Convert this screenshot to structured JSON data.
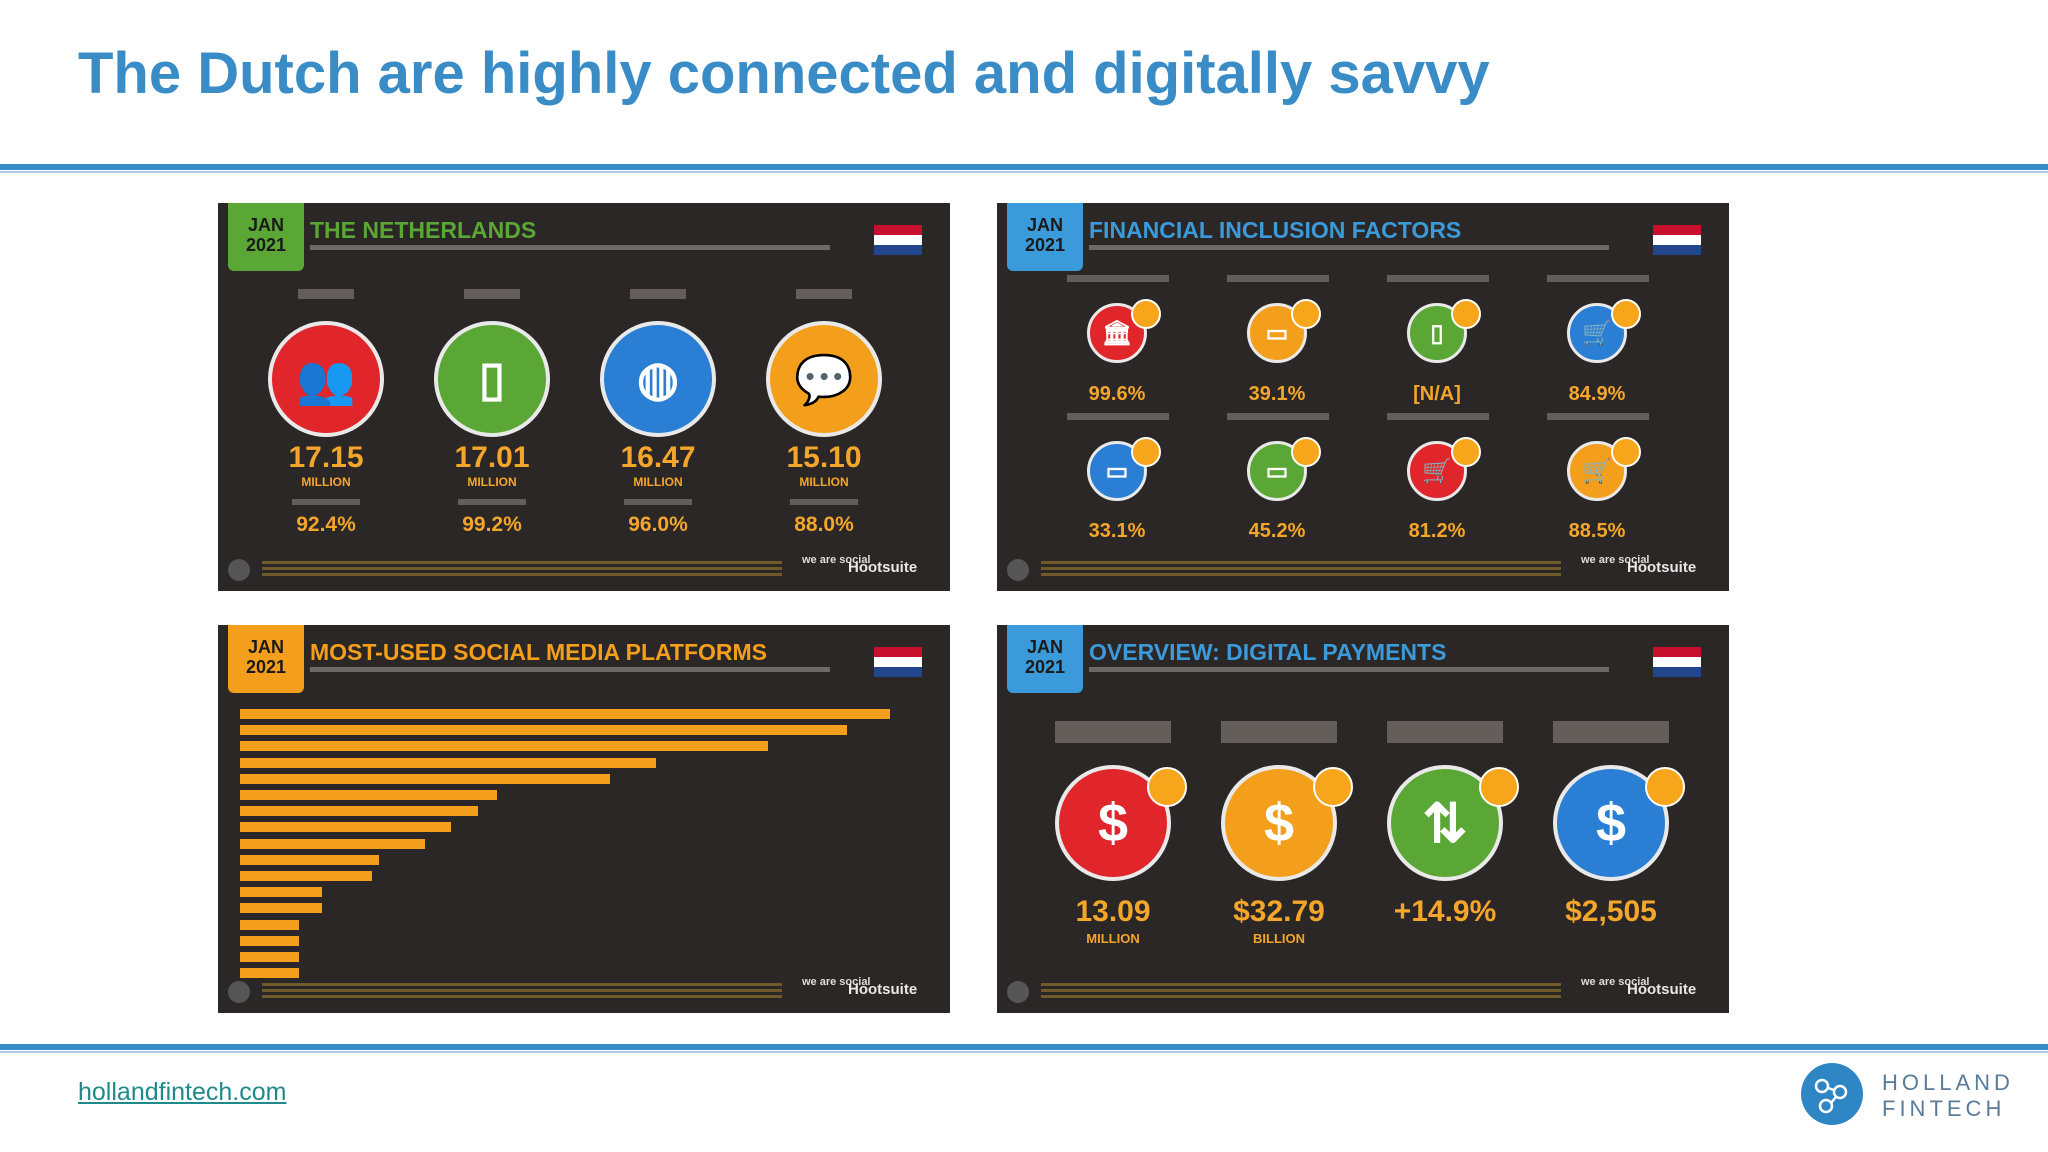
{
  "title": "The Dutch are highly connected and digitally savvy",
  "footer": {
    "link": "hollandfintech.com"
  },
  "logo": {
    "line1": "HOLLAND",
    "line2": "FINTECH"
  },
  "jan_badge": {
    "line1": "JAN",
    "line2": "2021"
  },
  "brand": {
    "was": "we are social",
    "hootsuite": "Hootsuite"
  },
  "colors": {
    "accent_blue": "#3a8cc6",
    "panel_bg": "#2b2726",
    "stat_orange": "#f4a62a",
    "green_badge": "#5aa735",
    "blue_badge": "#3b9ad9"
  },
  "panels": {
    "netherlands": {
      "title": "THE NETHERLANDS",
      "stats": [
        {
          "value": "17.15",
          "unit": "MILLION",
          "pct": "92.4%",
          "color": "#e0252b",
          "icon": "people-icon"
        },
        {
          "value": "17.01",
          "unit": "MILLION",
          "pct": "99.2%",
          "color": "#5aa735",
          "icon": "mobile-phone-icon"
        },
        {
          "value": "16.47",
          "unit": "MILLION",
          "pct": "96.0%",
          "color": "#2a7fd4",
          "icon": "globe-icon"
        },
        {
          "value": "15.10",
          "unit": "MILLION",
          "pct": "88.0%",
          "color": "#f49f1c",
          "icon": "chat-bubbles-icon"
        }
      ]
    },
    "financial": {
      "title": "FINANCIAL INCLUSION FACTORS",
      "row1": [
        {
          "value": "99.6%",
          "color": "#e0252b",
          "icon": "bank-icon"
        },
        {
          "value": "39.1%",
          "color": "#f49f1c",
          "icon": "credit-card-icon"
        },
        {
          "value": "[N/A]",
          "color": "#5aa735",
          "icon": "mobile-money-icon"
        },
        {
          "value": "84.9%",
          "color": "#2a7fd4",
          "icon": "cart-icon"
        }
      ],
      "row2": [
        {
          "value": "33.1%",
          "color": "#2a7fd4",
          "icon": "card-female-icon"
        },
        {
          "value": "45.2%",
          "color": "#5aa735",
          "icon": "card-male-icon"
        },
        {
          "value": "81.2%",
          "color": "#e0252b",
          "icon": "cart-female-icon"
        },
        {
          "value": "88.5%",
          "color": "#f49f1c",
          "icon": "cart-male-icon"
        }
      ]
    },
    "social": {
      "title": "MOST-USED SOCIAL MEDIA PLATFORMS",
      "bars": [
        0.985,
        0.92,
        0.8,
        0.63,
        0.56,
        0.39,
        0.36,
        0.32,
        0.28,
        0.21,
        0.2,
        0.124,
        0.124,
        0.09,
        0.09,
        0.09,
        0.09
      ]
    },
    "payments": {
      "title": "OVERVIEW: DIGITAL PAYMENTS",
      "stats": [
        {
          "value": "13.09",
          "unit": "MILLION",
          "color": "#e0252b",
          "icon": "dollar-waves-icon"
        },
        {
          "value": "$32.79",
          "unit": "BILLION",
          "color": "#f49f1c",
          "icon": "dollar-waves-icon"
        },
        {
          "value": "+14.9%",
          "unit": "",
          "color": "#5aa735",
          "icon": "up-down-arrows-icon"
        },
        {
          "value": "$2,505",
          "unit": "",
          "color": "#2a7fd4",
          "icon": "dollar-icon"
        }
      ]
    }
  }
}
